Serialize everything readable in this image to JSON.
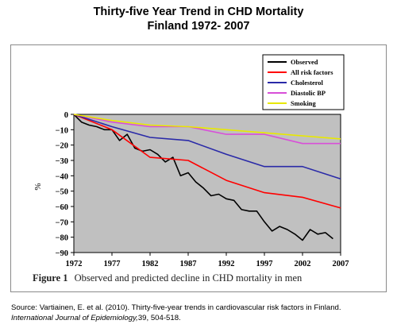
{
  "header": {
    "title_line1": "Thirty-five Year Trend in CHD Mortality",
    "title_line2": "Finland 1972- 2007"
  },
  "figure": {
    "caption_label": "Figure 1",
    "caption_text": "Observed and predicted decline in CHD mortality in men"
  },
  "source": {
    "text": "Source: Vartiainen, E. et al. (2010). Thirty-five-year trends in cardiovascular risk factors in Finland.",
    "journal": "International Journal of Epidemiology,",
    "citation": "39, 504-518."
  },
  "chart_data": {
    "type": "line",
    "title": "Thirty-five Year Trend in CHD Mortality Finland 1972- 2007",
    "xlabel": "",
    "ylabel": "%",
    "xlim": [
      1972,
      2007
    ],
    "ylim": [
      -90,
      0
    ],
    "x_ticks": [
      1972,
      1977,
      1982,
      1987,
      1992,
      1997,
      2002,
      2007
    ],
    "y_ticks": [
      0,
      -10,
      -20,
      -30,
      -40,
      -50,
      -60,
      -70,
      -80,
      -90
    ],
    "grid": false,
    "legend_position": "top-right",
    "plot_background": "#c0c0c0",
    "series": [
      {
        "name": "Observed",
        "color": "#000000",
        "x": [
          1972,
          1973,
          1974,
          1975,
          1976,
          1977,
          1978,
          1979,
          1980,
          1981,
          1982,
          1983,
          1984,
          1985,
          1986,
          1987,
          1988,
          1989,
          1990,
          1991,
          1992,
          1993,
          1994,
          1995,
          1996,
          1997,
          1998,
          1999,
          2000,
          2001,
          2002,
          2003,
          2004,
          2005,
          2006
        ],
        "values": [
          0,
          -5,
          -7,
          -8,
          -10,
          -10,
          -17,
          -13,
          -22,
          -24,
          -23,
          -26,
          -31,
          -28,
          -40,
          -38,
          -44,
          -48,
          -53,
          -52,
          -55,
          -56,
          -62,
          -63,
          -63,
          -70,
          -76,
          -73,
          -75,
          -78,
          -82,
          -75,
          -78,
          -77,
          -81
        ]
      },
      {
        "name": "All risk factors",
        "color": "#ff0000",
        "x": [
          1972,
          1977,
          1982,
          1987,
          1992,
          1997,
          2002,
          2007
        ],
        "values": [
          0,
          -10,
          -28,
          -30,
          -43,
          -51,
          -54,
          -61
        ]
      },
      {
        "name": "Cholesterol",
        "color": "#2a2aa8",
        "x": [
          1972,
          1977,
          1982,
          1987,
          1992,
          1997,
          2002,
          2007
        ],
        "values": [
          0,
          -8,
          -15,
          -17,
          -26,
          -34,
          -34,
          -42
        ]
      },
      {
        "name": "Diastolic BP",
        "color": "#d84fd8",
        "x": [
          1972,
          1977,
          1982,
          1987,
          1992,
          1997,
          2002,
          2007
        ],
        "values": [
          0,
          -5,
          -8,
          -8,
          -13,
          -13,
          -19,
          -19
        ]
      },
      {
        "name": "Smoking",
        "color": "#e8e800",
        "x": [
          1972,
          1977,
          1982,
          1987,
          1992,
          1997,
          2002,
          2007
        ],
        "values": [
          0,
          -4,
          -7,
          -8,
          -10,
          -12,
          -14,
          -16
        ]
      }
    ]
  }
}
